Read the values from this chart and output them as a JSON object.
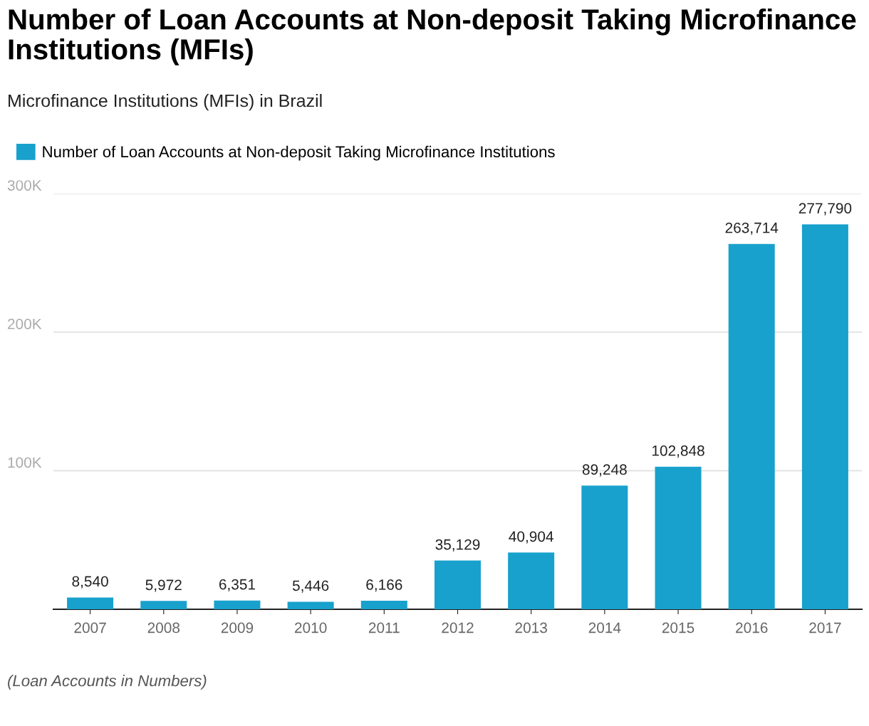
{
  "chart_data": {
    "type": "bar",
    "title": "Number of Loan Accounts at Non-deposit Taking Microfinance Institutions (MFIs)",
    "subtitle": "Microfinance Institutions (MFIs) in Brazil",
    "categories": [
      "2007",
      "2008",
      "2009",
      "2010",
      "2011",
      "2012",
      "2013",
      "2014",
      "2015",
      "2016",
      "2017"
    ],
    "series": [
      {
        "name": "Number of Loan Accounts at Non-deposit Taking Microfinance Institutions",
        "color": "#18a1cd",
        "values": [
          8540,
          5972,
          6351,
          5446,
          6166,
          35129,
          40904,
          89248,
          102848,
          263714,
          277790
        ]
      }
    ],
    "value_labels": [
      "8,540",
      "5,972",
      "6,351",
      "5,446",
      "6,166",
      "35,129",
      "40,904",
      "89,248",
      "102,848",
      "263,714",
      "277,790"
    ],
    "ylim": [
      0,
      300000
    ],
    "yticks": [
      {
        "value": 0,
        "label": null
      },
      {
        "value": 100000,
        "label": "100K"
      },
      {
        "value": 200000,
        "label": "200K"
      },
      {
        "value": 300000,
        "label": "300K"
      }
    ],
    "grid": "y",
    "legend": "top left",
    "annotations": [
      "(Loan Accounts in Numbers)"
    ]
  }
}
